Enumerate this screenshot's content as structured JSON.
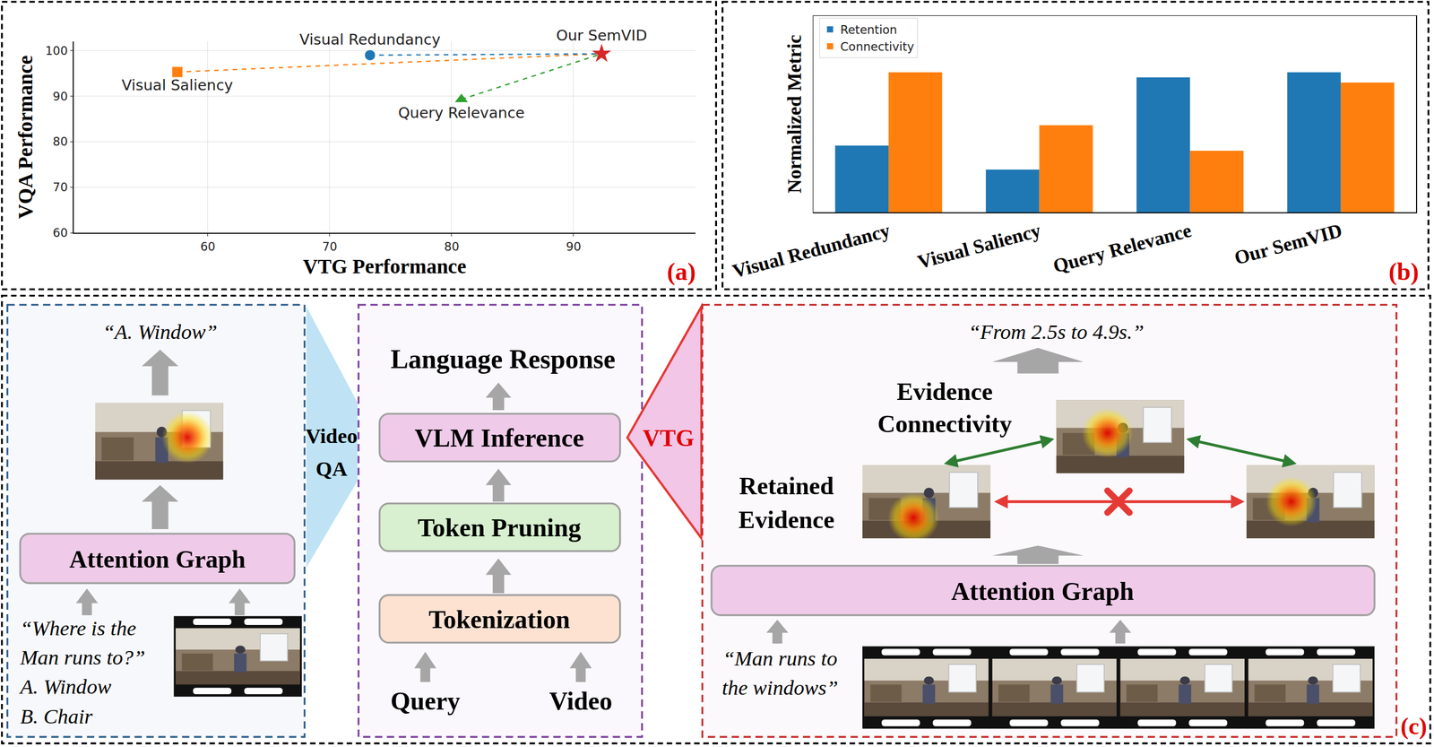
{
  "chart_data": [
    {
      "type": "scatter",
      "panel_label": "(a)",
      "x_label": "VTG Performance",
      "y_label": "VQA Performance",
      "xlim": [
        49,
        100
      ],
      "ylim": [
        60,
        102
      ],
      "xticks": [
        60,
        70,
        80,
        90
      ],
      "yticks": [
        60,
        70,
        80,
        90,
        100
      ],
      "grid": true,
      "line_style": "dashed",
      "series": [
        {
          "name": "Visual Saliency",
          "color": "#ff7f0e",
          "marker": "square",
          "x": [
            57.5
          ],
          "y": [
            95.3
          ]
        },
        {
          "name": "Visual Redundancy",
          "color": "#1f77b4",
          "marker": "circle",
          "x": [
            73.3
          ],
          "y": [
            99.0
          ]
        },
        {
          "name": "Query Relevance",
          "color": "#2ca02c",
          "marker": "triangle-up",
          "x": [
            80.8
          ],
          "y": [
            89.3
          ]
        },
        {
          "name": "Our SemVID",
          "color": "#d62728",
          "marker": "star",
          "x": [
            92.3
          ],
          "y": [
            99.3
          ]
        }
      ]
    },
    {
      "type": "bar",
      "panel_label": "(b)",
      "y_label": "Normalized Metric",
      "categories": [
        "Visual Redundancy",
        "Visual Saliency",
        "Query Relevance",
        "Our SemVID"
      ],
      "series": [
        {
          "name": "Retention",
          "color": "#1f77b4",
          "values": [
            0.39,
            0.25,
            0.79,
            0.82
          ]
        },
        {
          "name": "Connectivity",
          "color": "#ff7f0e",
          "values": [
            0.82,
            0.51,
            0.36,
            0.76
          ]
        }
      ],
      "ylim": [
        0,
        1.15
      ],
      "tick_labels": "x",
      "legend": "top-left"
    }
  ],
  "diagram": {
    "panel_label": "(c)",
    "video_qa": {
      "answer": "“A. Window”",
      "module": "Attention Graph",
      "question_lines": [
        "“Where is the",
        "Man runs to?”"
      ],
      "options": [
        "A.  Window",
        "B.  Chair"
      ]
    },
    "pipeline": {
      "output": "Language Response",
      "steps": [
        "VLM Inference",
        "Token Pruning",
        "Tokenization"
      ],
      "inputs": [
        "Query",
        "Video"
      ]
    },
    "connectors": {
      "video_qa": [
        "Video",
        "QA"
      ],
      "vtg": "VTG"
    },
    "vtg": {
      "answer": "“From 2.5s to 4.9s.”",
      "connectivity_label": [
        "Evidence",
        "Connectivity"
      ],
      "retained_label": [
        "Retained",
        "Evidence"
      ],
      "module": "Attention Graph",
      "query_lines": [
        "“Man runs to",
        "the windows”"
      ]
    }
  }
}
